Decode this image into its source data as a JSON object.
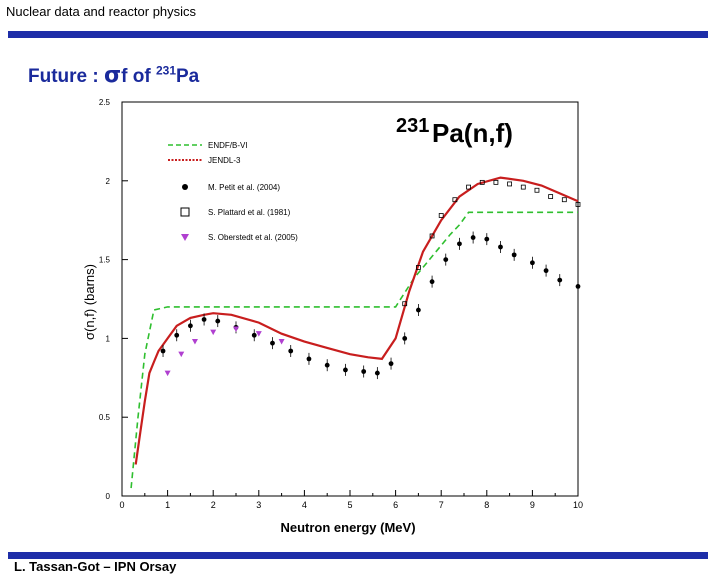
{
  "header": {
    "title": "Nuclear data and reactor physics"
  },
  "slide": {
    "title_prefix": "Future : ",
    "title_sigma": "σ",
    "title_f": "f",
    "title_of": "of",
    "title_mass": "231",
    "title_element": "Pa"
  },
  "footer": {
    "text": "L. Tassan-Got – IPN Orsay"
  },
  "colors": {
    "accent_bar": "#1e2ea8",
    "title": "#1a2a9c",
    "endf": "#2fbf2f",
    "jendl": "#c81e1e",
    "oberstedt": "#b040d0"
  },
  "chart_data": {
    "type": "scatter",
    "title_mass": "231",
    "title_reaction": "Pa(n,f)",
    "xlabel": "Neutron energy (MeV)",
    "ylabel": "σ(n,f) (barns)",
    "xlim": [
      0,
      10
    ],
    "ylim": [
      0,
      2.5
    ],
    "x_ticks": [
      "0",
      "1",
      "2",
      "3",
      "4",
      "5",
      "6",
      "7",
      "8",
      "9",
      "10"
    ],
    "y_ticks": [
      "0",
      "0.5",
      "1",
      "1.5",
      "2",
      "2.5"
    ],
    "series": [
      {
        "name": "ENDF/B-VI",
        "kind": "line",
        "style": "dashed",
        "x": [
          0.2,
          0.35,
          0.5,
          0.7,
          1.0,
          1.5,
          2.0,
          3.0,
          4.0,
          5.0,
          5.8,
          6.0,
          6.4,
          6.8,
          7.2,
          7.4,
          7.6,
          8.0,
          9.0,
          10.0
        ],
        "y": [
          0.05,
          0.5,
          0.9,
          1.18,
          1.2,
          1.2,
          1.2,
          1.2,
          1.2,
          1.2,
          1.2,
          1.2,
          1.38,
          1.52,
          1.66,
          1.72,
          1.8,
          1.8,
          1.8,
          1.8
        ]
      },
      {
        "name": "JENDL-3",
        "kind": "line",
        "style": "dotted",
        "x": [
          0.3,
          0.4,
          0.5,
          0.6,
          0.7,
          0.8,
          1.0,
          1.2,
          1.5,
          1.8,
          2.0,
          2.4,
          3.0,
          3.5,
          4.0,
          4.5,
          5.0,
          5.4,
          5.7,
          6.0,
          6.3,
          6.6,
          7.0,
          7.4,
          7.8,
          8.3,
          8.8,
          9.2,
          9.6,
          10.0
        ],
        "y": [
          0.2,
          0.4,
          0.6,
          0.78,
          0.85,
          0.92,
          1.0,
          1.08,
          1.13,
          1.15,
          1.16,
          1.15,
          1.1,
          1.03,
          0.98,
          0.94,
          0.9,
          0.88,
          0.87,
          1.0,
          1.3,
          1.55,
          1.75,
          1.9,
          1.98,
          2.02,
          2.0,
          1.97,
          1.92,
          1.87
        ]
      },
      {
        "name": "M. Petit et al. (2004)",
        "kind": "points",
        "marker": "circle",
        "x": [
          0.9,
          1.2,
          1.5,
          1.8,
          2.1,
          2.5,
          2.9,
          3.3,
          3.7,
          4.1,
          4.5,
          4.9,
          5.3,
          5.6,
          5.9,
          6.2,
          6.5,
          6.8,
          7.1,
          7.4,
          7.7,
          8.0,
          8.3,
          8.6,
          9.0,
          9.3,
          9.6,
          10.0
        ],
        "y": [
          0.92,
          1.02,
          1.08,
          1.12,
          1.11,
          1.07,
          1.02,
          0.97,
          0.92,
          0.87,
          0.83,
          0.8,
          0.79,
          0.78,
          0.84,
          1.0,
          1.18,
          1.36,
          1.5,
          1.6,
          1.64,
          1.63,
          1.58,
          1.53,
          1.48,
          1.43,
          1.37,
          1.33
        ]
      },
      {
        "name": "S. Plattard et al. (1981)",
        "kind": "points",
        "marker": "square",
        "x": [
          6.2,
          6.5,
          6.8,
          7.0,
          7.3,
          7.6,
          7.9,
          8.2,
          8.5,
          8.8,
          9.1,
          9.4,
          9.7,
          10.0
        ],
        "y": [
          1.22,
          1.45,
          1.65,
          1.78,
          1.88,
          1.96,
          1.99,
          1.99,
          1.98,
          1.96,
          1.94,
          1.9,
          1.88,
          1.85
        ]
      },
      {
        "name": "S. Oberstedt et al. (2005)",
        "kind": "points",
        "marker": "triangle-down",
        "x": [
          1.0,
          1.3,
          1.6,
          2.0,
          2.5,
          3.0,
          3.5
        ],
        "y": [
          0.78,
          0.9,
          0.98,
          1.04,
          1.06,
          1.03,
          0.98
        ]
      }
    ],
    "legend": {
      "placement": "top-left"
    }
  }
}
